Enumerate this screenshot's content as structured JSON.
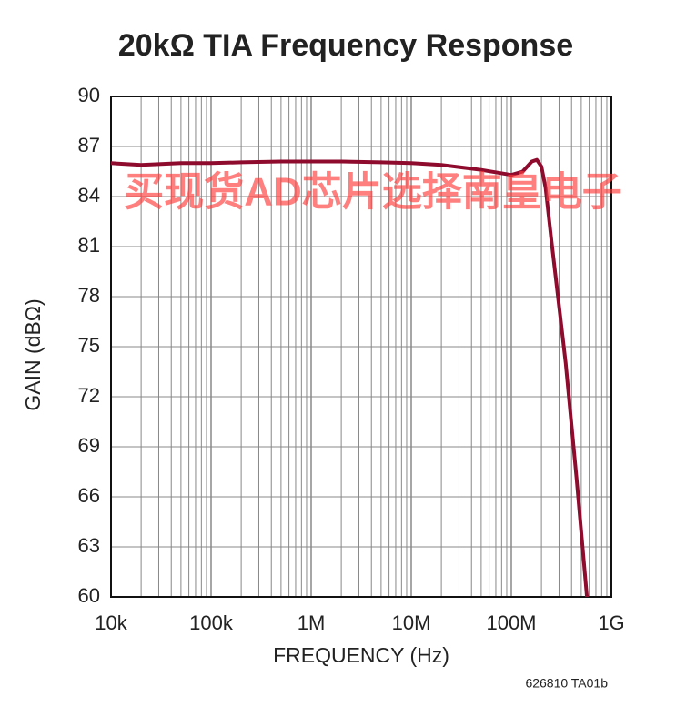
{
  "chart_data": {
    "type": "line",
    "title": "20kΩ TIA Frequency Response",
    "xlabel": "FREQUENCY (Hz)",
    "ylabel": "GAIN (dBΩ)",
    "annotations": [
      "买现货AD芯片选择南皇电子",
      "626810 TA01b"
    ],
    "xscale": "log",
    "grid": true,
    "xlim": [
      10000,
      1000000000
    ],
    "xticks": [
      {
        "value": 10000,
        "label": "10k"
      },
      {
        "value": 100000,
        "label": "100k"
      },
      {
        "value": 1000000,
        "label": "1M"
      },
      {
        "value": 10000000,
        "label": "10M"
      },
      {
        "value": 100000000,
        "label": "100M"
      },
      {
        "value": 1000000000,
        "label": "1G"
      }
    ],
    "ylim": [
      60,
      90
    ],
    "yticks": [
      60,
      63,
      66,
      69,
      72,
      75,
      78,
      81,
      84,
      87,
      90
    ],
    "series": [
      {
        "name": "Gain",
        "color": "#8e0b2e",
        "x": [
          10000,
          20000,
          50000,
          100000,
          200000,
          500000,
          1000000,
          2000000,
          5000000,
          10000000,
          20000000,
          50000000,
          100000000,
          130000000,
          160000000,
          180000000,
          200000000,
          220000000,
          250000000,
          350000000,
          450000000,
          570000000
        ],
        "values": [
          86.0,
          85.9,
          86.0,
          86.0,
          86.05,
          86.1,
          86.1,
          86.1,
          86.05,
          86.0,
          85.9,
          85.6,
          85.3,
          85.5,
          86.1,
          86.2,
          85.8,
          84.5,
          81.5,
          74,
          67,
          60
        ]
      }
    ]
  }
}
